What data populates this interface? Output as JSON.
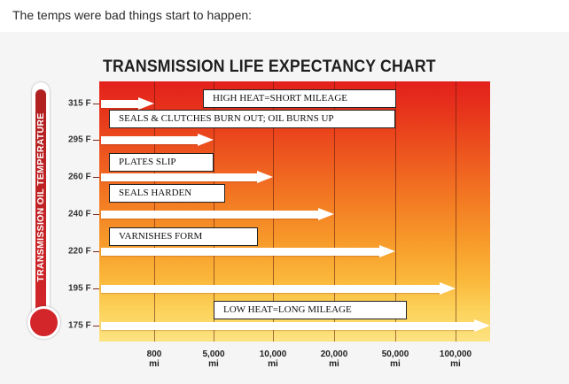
{
  "post": {
    "text": "The temps were bad things start to happen:"
  },
  "chart": {
    "title": "TRANSMISSION LIFE EXPECTANCY CHART",
    "thermometer_label": "TRANSMISSION OIL TEMPERATURE",
    "colors": {
      "panel_top": "#e3201b",
      "panel_bottom": "#fde382",
      "thermometer": "#d3262a",
      "arrows": "#ffffff"
    },
    "callouts": [
      "HIGH HEAT=SHORT MILEAGE",
      "SEALS & CLUTCHES BURN OUT; OIL BURNS UP",
      "PLATES SLIP",
      "SEALS HARDEN",
      "VARNISHES FORM",
      "LOW HEAT=LONG MILEAGE"
    ]
  },
  "chart_data": {
    "type": "bar",
    "orientation": "horizontal",
    "title": "TRANSMISSION LIFE EXPECTANCY CHART",
    "ylabel": "TRANSMISSION OIL TEMPERATURE",
    "xlabel": "",
    "y_tick_labels": [
      "315 F",
      "295 F",
      "260 F",
      "240 F",
      "220 F",
      "195 F",
      "175 F"
    ],
    "x_tick_labels": [
      {
        "value": "800",
        "unit": "mi"
      },
      {
        "value": "5,000",
        "unit": "mi"
      },
      {
        "value": "10,000",
        "unit": "mi"
      },
      {
        "value": "20,000",
        "unit": "mi"
      },
      {
        "value": "50,000",
        "unit": "mi"
      },
      {
        "value": "100,000",
        "unit": "mi"
      }
    ],
    "categories": [
      "315 F",
      "295 F",
      "260 F",
      "240 F",
      "220 F",
      "195 F",
      "175 F"
    ],
    "values_miles": [
      800,
      5000,
      10000,
      20000,
      50000,
      100000,
      100000
    ],
    "x_scale": "ordinal",
    "grid": true
  }
}
